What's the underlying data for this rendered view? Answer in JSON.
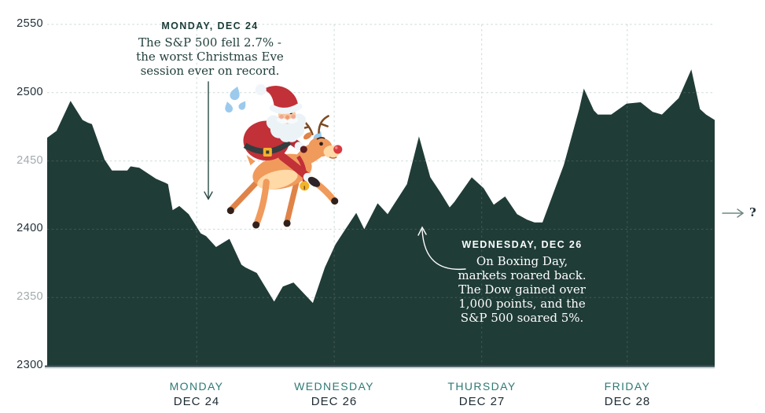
{
  "annotations": {
    "monday": {
      "title": "MONDAY, DEC 24",
      "lines": [
        "The S&P 500 fell 2.7% -",
        "the worst Christmas Eve",
        "session ever on record."
      ]
    },
    "wednesday": {
      "title": "WEDNESDAY, DEC 26",
      "lines": [
        "On Boxing Day,",
        "markets roared back.",
        "The Dow gained over",
        "1,000 points, and the",
        "S&P 500 soared 5%."
      ]
    },
    "future_question": "?"
  },
  "chart_data": {
    "type": "area",
    "series": [
      {
        "name": "S&P 500",
        "points": [
          [
            0.0,
            2467
          ],
          [
            0.014,
            2472
          ],
          [
            0.035,
            2494
          ],
          [
            0.053,
            2480
          ],
          [
            0.061,
            2478
          ],
          [
            0.067,
            2477
          ],
          [
            0.086,
            2451
          ],
          [
            0.097,
            2443
          ],
          [
            0.12,
            2443
          ],
          [
            0.125,
            2446
          ],
          [
            0.138,
            2445
          ],
          [
            0.163,
            2437
          ],
          [
            0.177,
            2434
          ],
          [
            0.181,
            2433
          ],
          [
            0.188,
            2414
          ],
          [
            0.198,
            2417
          ],
          [
            0.212,
            2411
          ],
          [
            0.23,
            2397
          ],
          [
            0.238,
            2395
          ],
          [
            0.253,
            2387
          ],
          [
            0.273,
            2393
          ],
          [
            0.291,
            2374
          ],
          [
            0.297,
            2372
          ],
          [
            0.314,
            2368
          ],
          [
            0.34,
            2347
          ],
          [
            0.353,
            2358
          ],
          [
            0.369,
            2361
          ],
          [
            0.398,
            2346
          ],
          [
            0.416,
            2372
          ],
          [
            0.432,
            2389
          ],
          [
            0.444,
            2398
          ],
          [
            0.463,
            2412
          ],
          [
            0.475,
            2400
          ],
          [
            0.495,
            2419
          ],
          [
            0.51,
            2411
          ],
          [
            0.539,
            2433
          ],
          [
            0.557,
            2468
          ],
          [
            0.574,
            2438
          ],
          [
            0.589,
            2427
          ],
          [
            0.603,
            2416
          ],
          [
            0.61,
            2420
          ],
          [
            0.636,
            2438
          ],
          [
            0.654,
            2430
          ],
          [
            0.669,
            2418
          ],
          [
            0.686,
            2424
          ],
          [
            0.704,
            2411
          ],
          [
            0.719,
            2407
          ],
          [
            0.73,
            2405
          ],
          [
            0.742,
            2405
          ],
          [
            0.774,
            2447
          ],
          [
            0.797,
            2488
          ],
          [
            0.804,
            2503
          ],
          [
            0.819,
            2487
          ],
          [
            0.825,
            2484
          ],
          [
            0.845,
            2484
          ],
          [
            0.868,
            2492
          ],
          [
            0.889,
            2493
          ],
          [
            0.907,
            2486
          ],
          [
            0.921,
            2484
          ],
          [
            0.946,
            2496
          ],
          [
            0.965,
            2517
          ],
          [
            0.978,
            2488
          ],
          [
            0.987,
            2484
          ],
          [
            1.0,
            2480
          ]
        ]
      }
    ],
    "y_axis": {
      "min": 2300,
      "max": 2550,
      "ticks": [
        {
          "label": "2550",
          "value": 2550,
          "muted": false
        },
        {
          "label": "2500",
          "value": 2500,
          "muted": false
        },
        {
          "label": "2450",
          "value": 2450,
          "muted": true
        },
        {
          "label": "2400",
          "value": 2400,
          "muted": false
        },
        {
          "label": "2350",
          "value": 2350,
          "muted": true
        },
        {
          "label": "2300",
          "value": 2300,
          "muted": false
        }
      ]
    },
    "x_axis": {
      "labels": [
        {
          "day": "MONDAY",
          "date": "DEC 24",
          "f": 0.224
        },
        {
          "day": "WEDNESDAY",
          "date": "DEC 26",
          "f": 0.43
        },
        {
          "day": "THURSDAY",
          "date": "DEC 27",
          "f": 0.651
        },
        {
          "day": "FRIDAY",
          "date": "DEC 28",
          "f": 0.869
        }
      ]
    },
    "colors": {
      "area_fill": "#203C37",
      "grid": "#C9DAD7",
      "grid_on_area": "rgba(255,255,255,0.16)",
      "day_label": "#2E7A74",
      "date_label": "#1C2B33",
      "tick": "#1E2D36",
      "tick_muted": "#A3ABAD",
      "annotation_dark": "#1A3C38",
      "annotation_light": "#FFFFFF",
      "baseline": "#42555A",
      "future_arrow": "#6E8784"
    },
    "grid": true,
    "legend": "none"
  }
}
